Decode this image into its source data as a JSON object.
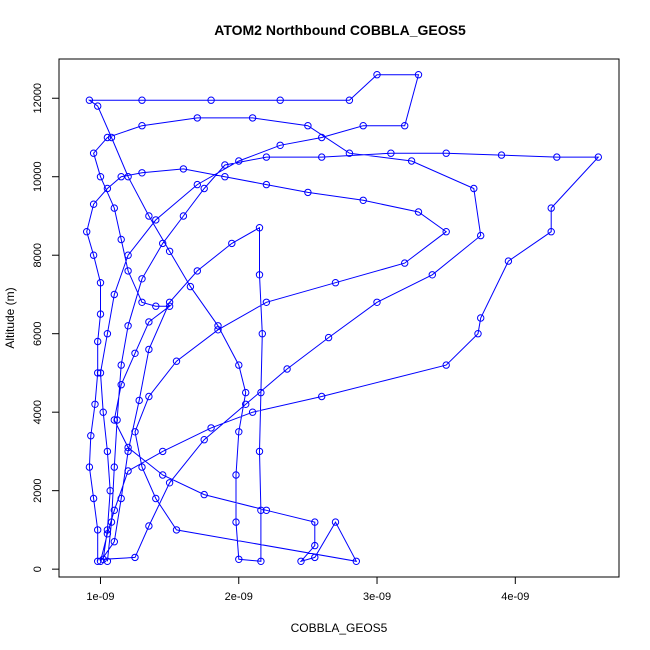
{
  "chart_data": {
    "type": "line",
    "title": "ATOM2 Northbound COBBLA_GEOS5",
    "xlabel": "COBBLA_GEOS5",
    "ylabel": "Altitude (m)",
    "xlim": [
      7e-10,
      4.75e-09
    ],
    "ylim": [
      -200,
      13000
    ],
    "x_ticks": [
      1e-09,
      2e-09,
      3e-09,
      4e-09
    ],
    "x_tick_labels": [
      "1e-09",
      "2e-09",
      "3e-09",
      "4e-09"
    ],
    "y_ticks": [
      0,
      2000,
      4000,
      6000,
      8000,
      10000,
      12000
    ],
    "y_tick_labels": [
      "0",
      "2000",
      "4000",
      "6000",
      "8000",
      "10000",
      "12000"
    ],
    "grid": false,
    "legend": "none",
    "marker": "open-circle",
    "colors": {
      "series": "#0000ff",
      "axes": "#000000",
      "background": "#ffffff"
    },
    "series": [
      {
        "values": [
          [
            1.05e-09,
            200
          ],
          [
            1.08e-09,
            1200
          ],
          [
            1.1e-09,
            2600
          ],
          [
            1.12e-09,
            3800
          ],
          [
            1.15e-09,
            5200
          ],
          [
            1.2e-09,
            6200
          ],
          [
            1.3e-09,
            7400
          ],
          [
            1.45e-09,
            8300
          ],
          [
            1.6e-09,
            9000
          ],
          [
            1.75e-09,
            9700
          ],
          [
            1.9e-09,
            10300
          ],
          [
            2.2e-09,
            10500
          ],
          [
            2.6e-09,
            10500
          ],
          [
            3.1e-09,
            10600
          ],
          [
            3.5e-09,
            10600
          ],
          [
            3.9e-09,
            10550
          ],
          [
            4.3e-09,
            10500
          ],
          [
            4.6e-09,
            10500
          ],
          [
            4.26e-09,
            9200
          ],
          [
            4.26e-09,
            8600
          ],
          [
            3.95e-09,
            7850
          ],
          [
            3.75e-09,
            6400
          ],
          [
            3.73e-09,
            6000
          ],
          [
            3.5e-09,
            5200
          ],
          [
            2.6e-09,
            4400
          ],
          [
            2.1e-09,
            4000
          ],
          [
            1.8e-09,
            3600
          ],
          [
            1.45e-09,
            3000
          ],
          [
            1.2e-09,
            2500
          ],
          [
            1.1e-09,
            1500
          ],
          [
            1.05e-09,
            900
          ],
          [
            1e-09,
            200
          ],
          [
            1.1e-09,
            700
          ],
          [
            1.15e-09,
            1800
          ],
          [
            1.2e-09,
            3000
          ],
          [
            1.28e-09,
            4300
          ],
          [
            1.35e-09,
            5600
          ],
          [
            1.5e-09,
            6800
          ],
          [
            1.7e-09,
            7600
          ],
          [
            1.95e-09,
            8300
          ],
          [
            2.15e-09,
            8700
          ],
          [
            2.15e-09,
            7500
          ],
          [
            2.17e-09,
            6000
          ],
          [
            2.16e-09,
            4500
          ],
          [
            2.15e-09,
            3000
          ],
          [
            2.16e-09,
            1500
          ],
          [
            2.16e-09,
            200
          ],
          [
            2e-09,
            250
          ],
          [
            1.98e-09,
            1200
          ],
          [
            1.98e-09,
            2400
          ],
          [
            2e-09,
            3500
          ],
          [
            2.05e-09,
            4500
          ],
          [
            2e-09,
            5200
          ],
          [
            1.85e-09,
            6200
          ],
          [
            1.65e-09,
            7200
          ],
          [
            1.5e-09,
            8100
          ],
          [
            1.35e-09,
            9000
          ],
          [
            1.2e-09,
            10000
          ],
          [
            1.08e-09,
            11000
          ],
          [
            9.8e-10,
            11800
          ],
          [
            9.2e-10,
            11950
          ],
          [
            1.3e-09,
            11950
          ],
          [
            1.8e-09,
            11950
          ],
          [
            2.3e-09,
            11950
          ],
          [
            2.8e-09,
            11950
          ],
          [
            3e-09,
            12600
          ],
          [
            3.3e-09,
            12600
          ],
          [
            3.2e-09,
            11300
          ],
          [
            2.9e-09,
            11300
          ],
          [
            2.6e-09,
            11000
          ],
          [
            2.3e-09,
            10800
          ],
          [
            2e-09,
            10400
          ],
          [
            1.7e-09,
            9800
          ],
          [
            1.4e-09,
            8900
          ],
          [
            1.2e-09,
            8000
          ],
          [
            1.1e-09,
            7000
          ],
          [
            1.05e-09,
            6000
          ],
          [
            1e-09,
            5000
          ],
          [
            1.02e-09,
            4000
          ],
          [
            1.05e-09,
            3000
          ],
          [
            1.07e-09,
            2000
          ],
          [
            1.05e-09,
            1000
          ],
          [
            1.02e-09,
            250
          ],
          [
            1.25e-09,
            300
          ],
          [
            1.35e-09,
            1100
          ],
          [
            1.5e-09,
            2200
          ],
          [
            1.75e-09,
            3300
          ],
          [
            2.05e-09,
            4200
          ],
          [
            2.35e-09,
            5100
          ],
          [
            2.65e-09,
            5900
          ],
          [
            3e-09,
            6800
          ],
          [
            3.4e-09,
            7500
          ],
          [
            3.75e-09,
            8500
          ],
          [
            3.7e-09,
            9700
          ],
          [
            3.25e-09,
            10400
          ],
          [
            2.8e-09,
            10600
          ],
          [
            2.5e-09,
            11300
          ],
          [
            2.1e-09,
            11500
          ],
          [
            1.7e-09,
            11500
          ],
          [
            1.3e-09,
            11300
          ],
          [
            1.05e-09,
            11000
          ],
          [
            9.5e-10,
            10600
          ],
          [
            1e-09,
            10000
          ],
          [
            1.1e-09,
            9200
          ],
          [
            1.15e-09,
            8400
          ],
          [
            1.2e-09,
            7600
          ],
          [
            1.3e-09,
            6800
          ],
          [
            1.4e-09,
            6700
          ],
          [
            1.5e-09,
            6700
          ],
          [
            1.35e-09,
            6300
          ],
          [
            1.25e-09,
            5500
          ],
          [
            1.15e-09,
            4700
          ],
          [
            1.1e-09,
            3800
          ],
          [
            1.2e-09,
            3100
          ],
          [
            1.45e-09,
            2400
          ],
          [
            1.75e-09,
            1900
          ],
          [
            2.2e-09,
            1500
          ],
          [
            2.55e-09,
            1200
          ],
          [
            2.55e-09,
            600
          ],
          [
            2.45e-09,
            200
          ],
          [
            2.55e-09,
            300
          ],
          [
            2.7e-09,
            1200
          ],
          [
            2.85e-09,
            200
          ],
          [
            1.55e-09,
            1000
          ],
          [
            1.4e-09,
            1800
          ],
          [
            1.3e-09,
            2600
          ],
          [
            1.25e-09,
            3500
          ],
          [
            1.35e-09,
            4400
          ],
          [
            1.55e-09,
            5300
          ],
          [
            1.85e-09,
            6100
          ],
          [
            2.2e-09,
            6800
          ],
          [
            2.7e-09,
            7300
          ],
          [
            3.2e-09,
            7800
          ],
          [
            3.5e-09,
            8600
          ],
          [
            3.3e-09,
            9100
          ],
          [
            2.9e-09,
            9400
          ],
          [
            2.5e-09,
            9600
          ],
          [
            2.2e-09,
            9800
          ],
          [
            1.9e-09,
            10000
          ],
          [
            1.6e-09,
            10200
          ],
          [
            1.3e-09,
            10100
          ],
          [
            1.15e-09,
            10000
          ],
          [
            1.05e-09,
            9700
          ],
          [
            9.5e-10,
            9300
          ],
          [
            9e-10,
            8600
          ],
          [
            9.5e-10,
            8000
          ],
          [
            1e-09,
            7300
          ],
          [
            1e-09,
            6500
          ],
          [
            9.8e-10,
            5800
          ],
          [
            9.8e-10,
            5000
          ],
          [
            9.6e-10,
            4200
          ],
          [
            9.3e-10,
            3400
          ],
          [
            9.2e-10,
            2600
          ],
          [
            9.5e-10,
            1800
          ],
          [
            9.8e-10,
            1000
          ],
          [
            9.8e-10,
            200
          ]
        ]
      }
    ]
  }
}
